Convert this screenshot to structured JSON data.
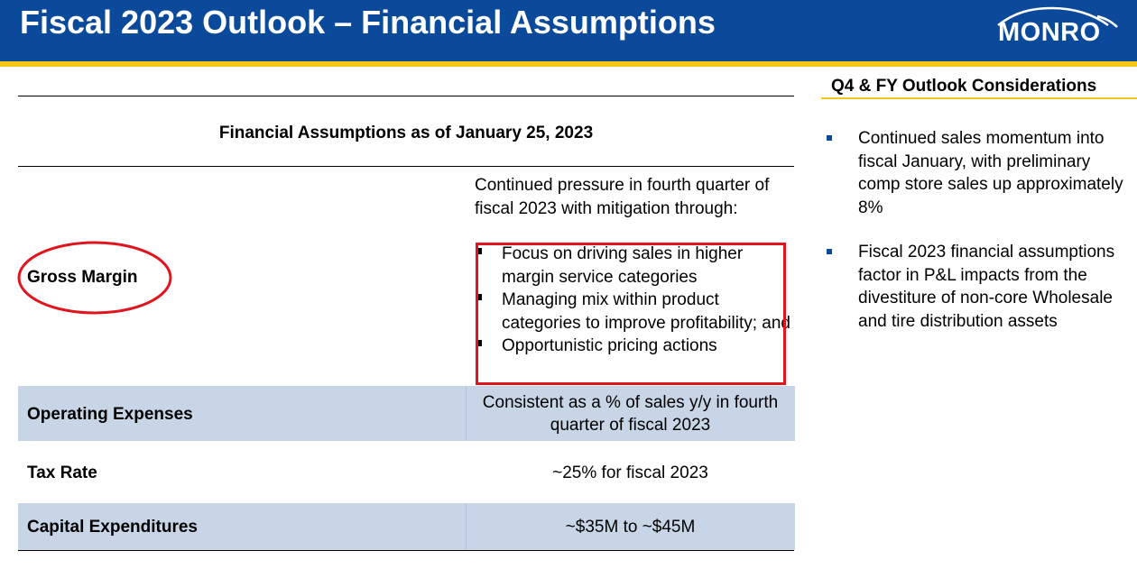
{
  "header": {
    "title": "Fiscal 2023 Outlook – Financial Assumptions",
    "logo_text": "MONRO",
    "colors": {
      "header_bg": "#0b4a9a",
      "accent": "#f5c518",
      "highlight": "#e0161e",
      "row_band": "#c7d5e6"
    }
  },
  "table": {
    "title": "Financial Assumptions as of January 25, 2023",
    "rows": [
      {
        "label": "Gross Margin",
        "intro": "Continued pressure in fourth quarter of fiscal 2023 with mitigation through:",
        "bullets": [
          "Focus on driving sales in higher margin service categories",
          "Managing mix within product categories to improve profitability; and",
          "Opportunistic pricing actions"
        ]
      },
      {
        "label": "Operating Expenses",
        "value": "Consistent as a % of sales y/y in fourth quarter of fiscal 2023"
      },
      {
        "label": "Tax Rate",
        "value": "~25% for fiscal 2023"
      },
      {
        "label": "Capital Expenditures",
        "value": "~$35M to ~$45M"
      }
    ]
  },
  "sidebar": {
    "title": "Q4 & FY Outlook Considerations",
    "bullets": [
      "Continued sales momentum into fiscal January, with preliminary comp store sales up approximately 8%",
      "Fiscal 2023 financial assumptions factor in P&L impacts from the divestiture of non-core Wholesale and tire distribution assets"
    ]
  }
}
